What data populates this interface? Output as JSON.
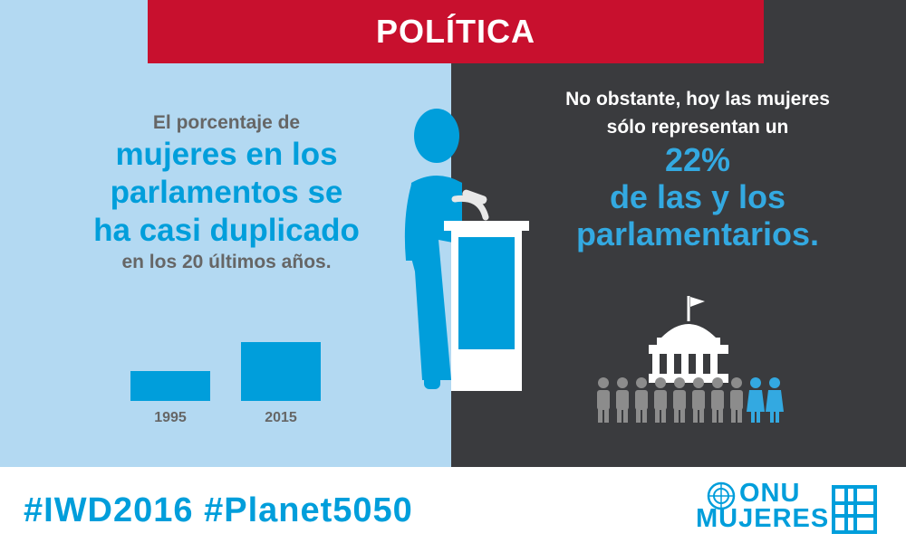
{
  "banner": {
    "title": "POLÍTICA"
  },
  "left": {
    "line1": "El porcentaje de",
    "big1": "mujeres en los",
    "big2": "parlamentos se",
    "big3": "ha casi duplicado",
    "line2": "en los 20 últimos años."
  },
  "right": {
    "line1": "No obstante, hoy las mujeres",
    "line2": "sólo representan un",
    "percent": "22%",
    "big1": "de las y los",
    "big2": "parlamentarios."
  },
  "bars": [
    {
      "label": "1995",
      "value": 11.3
    },
    {
      "label": "2015",
      "value": 22
    }
  ],
  "footer": {
    "hashtags": "#IWD2016 #Planet5050"
  },
  "logo": {
    "line1": "ONU",
    "line2": "MUJERES"
  },
  "colors": {
    "red": "#c8102e",
    "blue": "#009edb",
    "light_blue": "#b3d9f2",
    "dark": "#3a3b3e",
    "gray": "#666666"
  },
  "icons": [
    "woman-speaker-icon",
    "podium-icon",
    "parliament-building-icon",
    "people-row-icon",
    "un-emblem-icon"
  ]
}
